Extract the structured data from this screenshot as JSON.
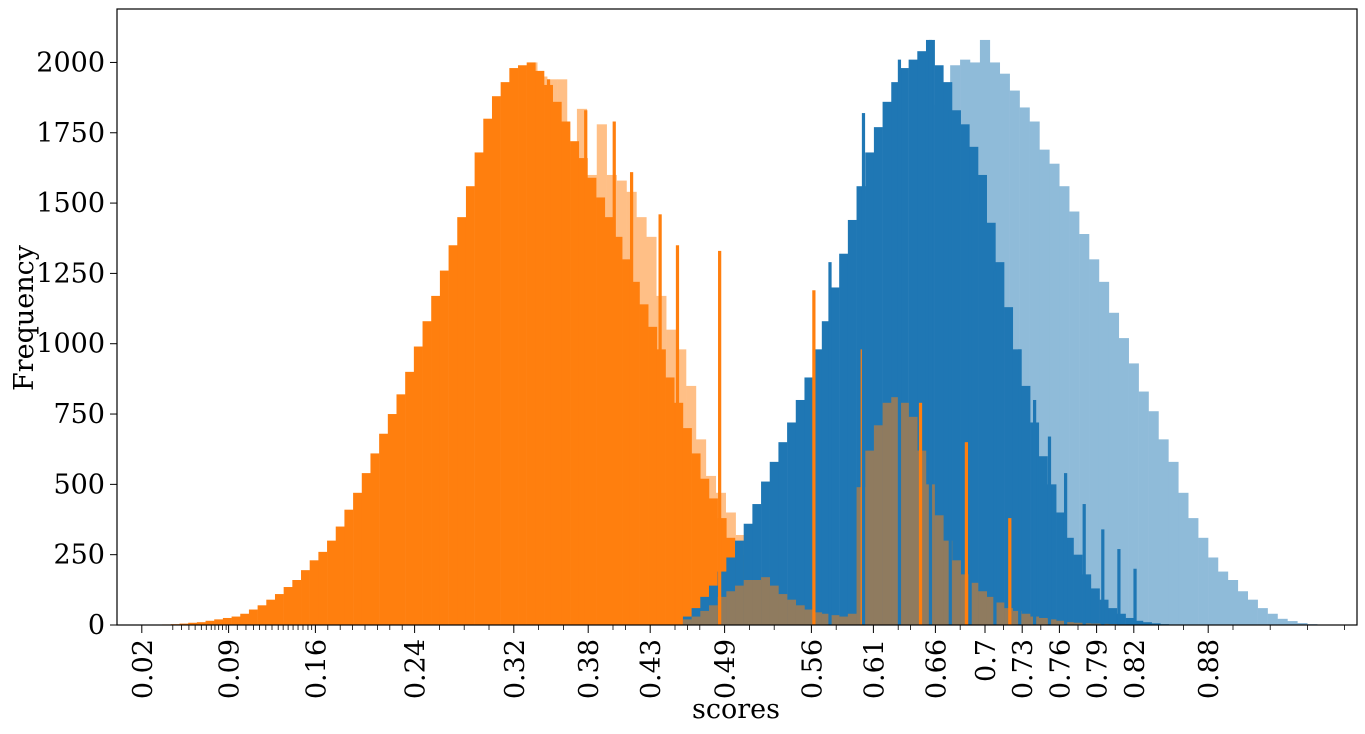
{
  "chart_data": {
    "type": "bar",
    "title": "",
    "xlabel": "scores",
    "ylabel": "Frequency",
    "xlim": [
      0.0,
      1.0
    ],
    "ylim": [
      0,
      2190
    ],
    "grid": false,
    "colors": {
      "orange": "#ff7f0e",
      "orange_light": "#ffbf86",
      "blue": "#1f77b4",
      "blue_light": "#8fbbd9",
      "overlap": "#8f7b5f"
    },
    "x_tick_labels": [
      "0.02",
      "0.09",
      "0.16",
      "0.24",
      "0.32",
      "0.38",
      "0.43",
      "0.49",
      "0.56",
      "0.61",
      "0.66",
      "0.7",
      "0.73",
      "0.76",
      "0.79",
      "0.82",
      "0.88"
    ],
    "x_tick_values": [
      0.02,
      0.09,
      0.16,
      0.24,
      0.32,
      0.38,
      0.43,
      0.49,
      0.56,
      0.61,
      0.66,
      0.7,
      0.73,
      0.76,
      0.79,
      0.82,
      0.88
    ],
    "x_minor_ticks": [
      0.045,
      0.052,
      0.058,
      0.063,
      0.068,
      0.072,
      0.076,
      0.079,
      0.082,
      0.085,
      0.088,
      0.097,
      0.104,
      0.11,
      0.115,
      0.12,
      0.125,
      0.13,
      0.134,
      0.138,
      0.142,
      0.146,
      0.15,
      0.154,
      0.157,
      0.17,
      0.18,
      0.19,
      0.2,
      0.21,
      0.22,
      0.23,
      0.26,
      0.28,
      0.3,
      0.34,
      0.36,
      0.4,
      0.41,
      0.45,
      0.46,
      0.47,
      0.51,
      0.53,
      0.58,
      0.63,
      0.64,
      0.68,
      0.715,
      0.745,
      0.775,
      0.805,
      0.84,
      0.86,
      0.9,
      0.93,
      0.96,
      0.99
    ],
    "y_tick_labels": [
      "0",
      "250",
      "500",
      "750",
      "1000",
      "1250",
      "1500",
      "1750",
      "2000"
    ],
    "y_tick_values": [
      0,
      250,
      500,
      750,
      1000,
      1250,
      1500,
      1750,
      2000
    ],
    "series": [
      {
        "role": "orange-light",
        "x": [
          0.335,
          0.343,
          0.351,
          0.359,
          0.367,
          0.375,
          0.383,
          0.391,
          0.399,
          0.407,
          0.415,
          0.423,
          0.431,
          0.439,
          0.447,
          0.455,
          0.463,
          0.471,
          0.479,
          0.487,
          0.495,
          0.503
        ],
        "values": [
          2000,
          1950,
          1940,
          1940,
          1700,
          1835,
          1600,
          1780,
          1600,
          1580,
          1540,
          1450,
          1380,
          1170,
          1050,
          980,
          850,
          660,
          530,
          470,
          400,
          320
        ]
      },
      {
        "role": "orange",
        "x": [
          0.04,
          0.047,
          0.054,
          0.061,
          0.068,
          0.075,
          0.082,
          0.089,
          0.096,
          0.103,
          0.11,
          0.117,
          0.124,
          0.131,
          0.138,
          0.145,
          0.152,
          0.159,
          0.166,
          0.173,
          0.18,
          0.187,
          0.194,
          0.201,
          0.208,
          0.215,
          0.222,
          0.229,
          0.236,
          0.243,
          0.25,
          0.257,
          0.264,
          0.271,
          0.278,
          0.285,
          0.292,
          0.299,
          0.306,
          0.313,
          0.32,
          0.327,
          0.334,
          0.341,
          0.348,
          0.355,
          0.362,
          0.369,
          0.376,
          0.383,
          0.39,
          0.397,
          0.404,
          0.411,
          0.418,
          0.425,
          0.432,
          0.439,
          0.446,
          0.453,
          0.46,
          0.467,
          0.474,
          0.481,
          0.488,
          0.495,
          0.502,
          0.509,
          0.516,
          0.523,
          0.53,
          0.537,
          0.544,
          0.551,
          0.558,
          0.565,
          0.572,
          0.579,
          0.586,
          0.593
        ],
        "values": [
          2,
          3,
          5,
          8,
          10,
          15,
          20,
          25,
          30,
          40,
          55,
          70,
          90,
          110,
          135,
          160,
          195,
          230,
          260,
          300,
          350,
          410,
          470,
          540,
          610,
          680,
          750,
          820,
          900,
          990,
          1080,
          1170,
          1260,
          1350,
          1450,
          1560,
          1680,
          1800,
          1880,
          1930,
          1980,
          1990,
          2000,
          1970,
          1920,
          1860,
          1790,
          1720,
          1660,
          1590,
          1520,
          1450,
          1380,
          1300,
          1220,
          1140,
          1060,
          980,
          880,
          790,
          700,
          610,
          520,
          450,
          380,
          310,
          250,
          200,
          160,
          130,
          100,
          80,
          60,
          45,
          35,
          25,
          18,
          12,
          8,
          5
        ]
      },
      {
        "role": "blue-light",
        "x": [
          0.66,
          0.668,
          0.676,
          0.684,
          0.692,
          0.7,
          0.708,
          0.716,
          0.724,
          0.732,
          0.74,
          0.748,
          0.756,
          0.764,
          0.772,
          0.78,
          0.788,
          0.796,
          0.804,
          0.812,
          0.82,
          0.828,
          0.836,
          0.844,
          0.852,
          0.86,
          0.868,
          0.876,
          0.884,
          0.892,
          0.9,
          0.908,
          0.916,
          0.924,
          0.932,
          0.94,
          0.948,
          0.956,
          0.964
        ],
        "values": [
          1850,
          1920,
          1990,
          2010,
          2000,
          2080,
          2000,
          1960,
          1900,
          1840,
          1790,
          1690,
          1640,
          1560,
          1470,
          1390,
          1300,
          1220,
          1110,
          1020,
          930,
          830,
          760,
          660,
          580,
          470,
          380,
          310,
          240,
          190,
          160,
          120,
          90,
          60,
          40,
          22,
          14,
          7,
          3
        ]
      },
      {
        "role": "blue",
        "x": [
          0.46,
          0.467,
          0.474,
          0.481,
          0.488,
          0.495,
          0.502,
          0.509,
          0.516,
          0.523,
          0.53,
          0.537,
          0.544,
          0.551,
          0.558,
          0.565,
          0.572,
          0.579,
          0.586,
          0.593,
          0.6,
          0.607,
          0.614,
          0.621,
          0.628,
          0.635,
          0.642,
          0.649,
          0.656,
          0.663,
          0.67,
          0.677,
          0.684,
          0.691,
          0.698,
          0.705,
          0.712,
          0.719,
          0.726,
          0.733,
          0.74,
          0.747,
          0.754,
          0.761,
          0.768,
          0.775,
          0.782,
          0.789,
          0.796,
          0.803,
          0.81,
          0.817,
          0.824,
          0.831,
          0.838,
          0.845
        ],
        "values": [
          30,
          60,
          100,
          140,
          190,
          240,
          300,
          360,
          430,
          510,
          580,
          650,
          720,
          800,
          880,
          980,
          1080,
          1200,
          1320,
          1440,
          1560,
          1680,
          1770,
          1860,
          1930,
          1980,
          2010,
          2040,
          2080,
          1990,
          1930,
          1830,
          1780,
          1700,
          1600,
          1430,
          1290,
          1130,
          980,
          850,
          720,
          600,
          500,
          400,
          310,
          250,
          180,
          130,
          90,
          60,
          40,
          25,
          15,
          10,
          6,
          3
        ]
      },
      {
        "role": "overlap",
        "x": [
          0.46,
          0.467,
          0.474,
          0.481,
          0.488,
          0.495,
          0.502,
          0.509,
          0.516,
          0.523,
          0.53,
          0.537,
          0.544,
          0.551,
          0.558,
          0.565,
          0.572,
          0.579,
          0.586,
          0.593,
          0.6,
          0.607,
          0.614,
          0.621,
          0.628,
          0.635,
          0.642,
          0.649,
          0.656,
          0.663,
          0.67,
          0.677,
          0.684,
          0.691,
          0.698,
          0.705,
          0.712,
          0.719,
          0.726,
          0.733,
          0.74,
          0.747,
          0.754,
          0.761,
          0.768,
          0.775,
          0.782,
          0.789,
          0.796,
          0.803,
          0.81,
          0.817
        ],
        "values": [
          20,
          30,
          50,
          70,
          100,
          120,
          140,
          160,
          160,
          170,
          140,
          110,
          90,
          70,
          55,
          45,
          40,
          35,
          30,
          40,
          490,
          620,
          710,
          790,
          810,
          790,
          740,
          620,
          500,
          390,
          300,
          230,
          180,
          150,
          120,
          100,
          80,
          60,
          50,
          40,
          30,
          25,
          20,
          15,
          10,
          8,
          6,
          5,
          4,
          3,
          2,
          1
        ]
      },
      {
        "role": "orange-spikes",
        "x": [
          0.348,
          0.378,
          0.401,
          0.415,
          0.438,
          0.452,
          0.486,
          0.562,
          0.601,
          0.648,
          0.685,
          0.72
        ],
        "values": [
          1940,
          1830,
          1790,
          1610,
          1460,
          1350,
          1330,
          1190,
          980,
          790,
          650,
          380
        ]
      },
      {
        "role": "blue-spikes",
        "x": [
          0.575,
          0.602,
          0.631,
          0.656,
          0.672,
          0.688,
          0.708,
          0.728,
          0.74,
          0.752,
          0.765,
          0.78,
          0.795,
          0.808,
          0.821
        ],
        "values": [
          1290,
          1820,
          2010,
          2080,
          1830,
          1500,
          1260,
          980,
          800,
          670,
          540,
          430,
          340,
          270,
          200
        ]
      }
    ]
  }
}
